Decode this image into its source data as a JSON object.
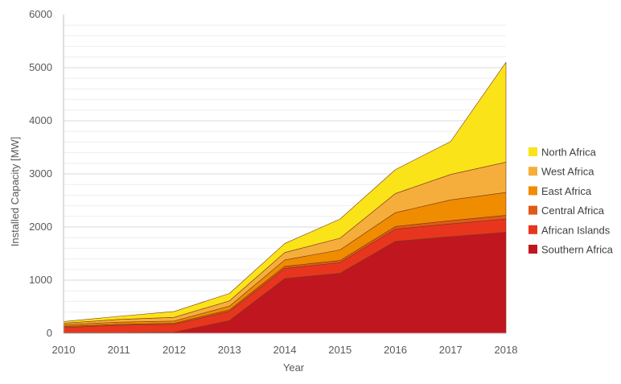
{
  "chart_data": {
    "type": "area",
    "stacked": true,
    "xlabel": "Year",
    "ylabel": "Installed Capacity [MW]",
    "x": [
      "2010",
      "2011",
      "2012",
      "2013",
      "2014",
      "2015",
      "2016",
      "2017",
      "2018"
    ],
    "ylim": [
      0,
      6000
    ],
    "yticks": [
      0,
      1000,
      2000,
      3000,
      4000,
      5000,
      6000
    ],
    "grid": true,
    "legend_position": "right",
    "series": [
      {
        "name": "Southern Africa",
        "color": "#C0161F",
        "values": [
          10,
          10,
          20,
          240,
          1030,
          1130,
          1730,
          1820,
          1900
        ]
      },
      {
        "name": "African Islands",
        "color": "#E8361E",
        "values": [
          100,
          140,
          150,
          170,
          190,
          200,
          230,
          240,
          250
        ]
      },
      {
        "name": "Central Africa",
        "color": "#E05A1A",
        "values": [
          20,
          20,
          20,
          30,
          40,
          40,
          50,
          60,
          70
        ]
      },
      {
        "name": "East Africa",
        "color": "#F08C00",
        "values": [
          30,
          40,
          40,
          70,
          120,
          200,
          260,
          390,
          430
        ]
      },
      {
        "name": "West Africa",
        "color": "#F5AE3C",
        "values": [
          30,
          50,
          70,
          100,
          140,
          220,
          360,
          480,
          570
        ]
      },
      {
        "name": "North Africa",
        "color": "#FBE319",
        "values": [
          30,
          60,
          110,
          140,
          170,
          360,
          450,
          620,
          1880
        ]
      }
    ]
  }
}
